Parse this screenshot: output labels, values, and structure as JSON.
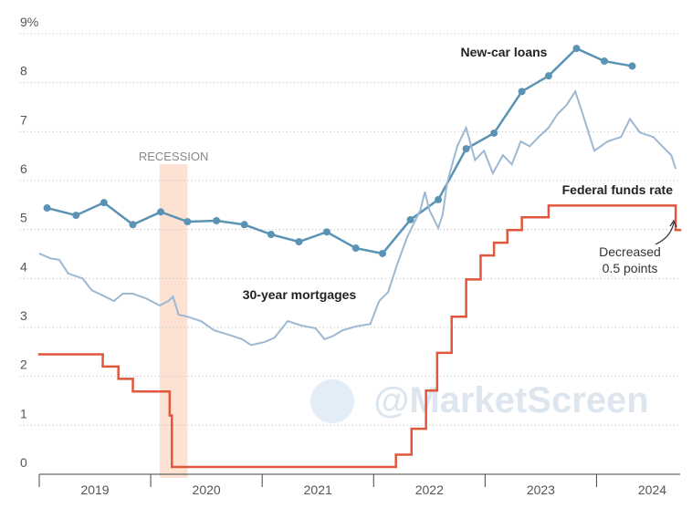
{
  "chart_data": {
    "type": "line",
    "xlim": [
      2019,
      2024.75
    ],
    "xticks": [
      {
        "value": 2019,
        "label": "2019"
      },
      {
        "value": 2020,
        "label": "2020"
      },
      {
        "value": 2021,
        "label": "2021"
      },
      {
        "value": 2022,
        "label": "2022"
      },
      {
        "value": 2023,
        "label": "2023"
      },
      {
        "value": 2024,
        "label": "2024"
      }
    ],
    "ylim": [
      0,
      9
    ],
    "yticks": [
      0,
      1,
      2,
      3,
      4,
      5,
      6,
      7,
      8,
      {
        "value": 9,
        "label": "9%"
      }
    ],
    "grid": true,
    "series": [
      {
        "name": "New-car loans",
        "color": "#5b93b5",
        "markers": true,
        "x": [
          2019.07,
          2019.33,
          2019.58,
          2019.84,
          2020.09,
          2020.33,
          2020.59,
          2020.84,
          2021.08,
          2021.33,
          2021.58,
          2021.84,
          2022.08,
          2022.33,
          2022.58,
          2022.83,
          2023.08,
          2023.33,
          2023.57,
          2023.82,
          2024.07,
          2024.32
        ],
        "values": [
          5.44,
          5.29,
          5.55,
          5.1,
          5.36,
          5.16,
          5.18,
          5.1,
          4.9,
          4.75,
          4.95,
          4.62,
          4.51,
          5.2,
          5.61,
          6.65,
          6.97,
          7.82,
          8.14,
          8.7,
          8.44,
          8.34
        ]
      },
      {
        "name": "30-year mortgages",
        "color": "#9db8d2",
        "markers": false,
        "x": [
          2019.0,
          2019.1,
          2019.18,
          2019.26,
          2019.39,
          2019.47,
          2019.59,
          2019.67,
          2019.75,
          2019.84,
          2019.96,
          2020.08,
          2020.16,
          2020.2,
          2020.25,
          2020.33,
          2020.45,
          2020.57,
          2020.7,
          2020.82,
          2020.9,
          2021.02,
          2021.11,
          2021.23,
          2021.35,
          2021.48,
          2021.56,
          2021.64,
          2021.72,
          2021.84,
          2021.97,
          2022.05,
          2022.13,
          2022.21,
          2022.3,
          2022.42,
          2022.46,
          2022.5,
          2022.58,
          2022.62,
          2022.66,
          2022.75,
          2022.83,
          2022.91,
          2022.99,
          2023.07,
          2023.16,
          2023.24,
          2023.32,
          2023.4,
          2023.48,
          2023.57,
          2023.65,
          2023.73,
          2023.81,
          2023.89,
          2023.98,
          2024.1,
          2024.22,
          2024.3,
          2024.39,
          2024.51,
          2024.59,
          2024.67,
          2024.71
        ],
        "values": [
          4.51,
          4.41,
          4.38,
          4.1,
          4.0,
          3.76,
          3.63,
          3.54,
          3.69,
          3.69,
          3.59,
          3.45,
          3.54,
          3.63,
          3.26,
          3.22,
          3.13,
          2.94,
          2.85,
          2.76,
          2.64,
          2.7,
          2.79,
          3.13,
          3.04,
          2.98,
          2.76,
          2.83,
          2.94,
          3.02,
          3.07,
          3.54,
          3.72,
          4.28,
          4.84,
          5.4,
          5.77,
          5.4,
          5.03,
          5.31,
          5.96,
          6.7,
          7.08,
          6.42,
          6.61,
          6.15,
          6.52,
          6.33,
          6.8,
          6.7,
          6.89,
          7.08,
          7.36,
          7.54,
          7.82,
          7.26,
          6.61,
          6.8,
          6.89,
          7.26,
          6.98,
          6.89,
          6.7,
          6.52,
          6.24
        ]
      },
      {
        "name": "Federal funds rate",
        "color": "#e0573c",
        "step": true,
        "x": [
          2019.0,
          2019.57,
          2019.71,
          2019.84,
          2020.17,
          2020.19,
          2022.2,
          2022.34,
          2022.47,
          2022.57,
          2022.7,
          2022.83,
          2022.96,
          2023.08,
          2023.2,
          2023.33,
          2023.57,
          2024.71
        ],
        "values": [
          2.45,
          2.2,
          1.95,
          1.69,
          1.2,
          0.15,
          0.4,
          0.93,
          1.71,
          2.48,
          3.22,
          3.98,
          4.47,
          4.73,
          4.99,
          5.25,
          5.49,
          4.99
        ]
      }
    ],
    "recession": {
      "label": "RECESSION",
      "x": [
        2020.08,
        2020.33
      ]
    },
    "annotation": {
      "text": [
        "Decreased",
        "0.5 points"
      ]
    },
    "watermark": "@MarketScreen"
  }
}
